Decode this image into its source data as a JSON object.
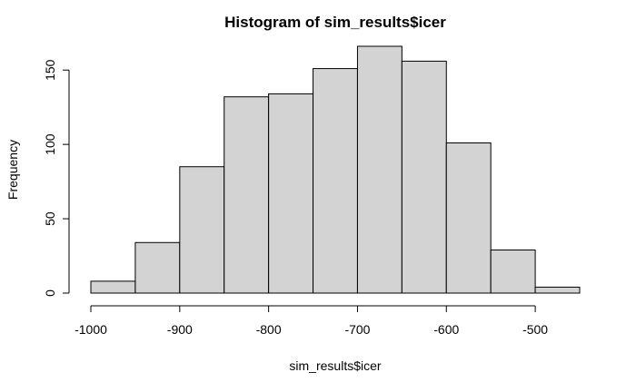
{
  "chart_data": {
    "type": "bar",
    "title": "Histogram of sim_results$icer",
    "xlabel": "sim_results$icer",
    "ylabel": "Frequency",
    "bins": [
      {
        "from": -1000,
        "to": -950,
        "count": 8
      },
      {
        "from": -950,
        "to": -900,
        "count": 34
      },
      {
        "from": -900,
        "to": -850,
        "count": 85
      },
      {
        "from": -850,
        "to": -800,
        "count": 132
      },
      {
        "from": -800,
        "to": -750,
        "count": 134
      },
      {
        "from": -750,
        "to": -700,
        "count": 151
      },
      {
        "from": -700,
        "to": -650,
        "count": 166
      },
      {
        "from": -650,
        "to": -600,
        "count": 156
      },
      {
        "from": -600,
        "to": -550,
        "count": 101
      },
      {
        "from": -550,
        "to": -500,
        "count": 29
      },
      {
        "from": -500,
        "to": -450,
        "count": 4
      }
    ],
    "xlim": [
      -1000,
      -450
    ],
    "ylim": [
      0,
      166
    ],
    "xticks": [
      -1000,
      -900,
      -800,
      -700,
      -600,
      -500
    ],
    "yticks": [
      0,
      50,
      100,
      150
    ],
    "grid": false,
    "colors": {
      "bar_fill": "#d3d3d3",
      "bar_stroke": "#000000"
    }
  }
}
